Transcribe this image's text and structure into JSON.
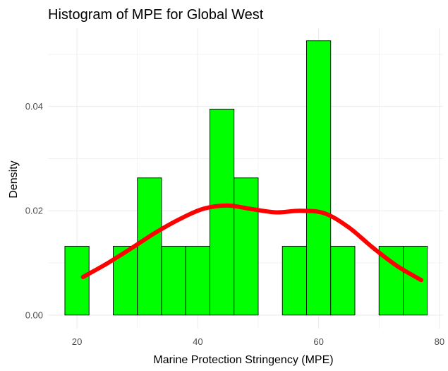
{
  "chart_data": {
    "type": "bar",
    "title": "Histogram of MPE for Global West",
    "xlabel": "Marine Protection Stringency (MPE)",
    "ylabel": "Density",
    "xlim": [
      15.2,
      80.6
    ],
    "ylim": [
      -0.0026,
      0.055
    ],
    "x_ticks": [
      20,
      40,
      60,
      80
    ],
    "y_ticks": [
      0.0,
      0.02,
      0.04
    ],
    "y_tick_labels": [
      "0.00",
      "0.02",
      "0.04"
    ],
    "grid": true,
    "bins": [
      {
        "x0": 18,
        "x1": 22,
        "density": 0.0132
      },
      {
        "x0": 22,
        "x1": 26,
        "density": 0.0
      },
      {
        "x0": 26,
        "x1": 30,
        "density": 0.0132
      },
      {
        "x0": 30,
        "x1": 34,
        "density": 0.0263
      },
      {
        "x0": 34,
        "x1": 38,
        "density": 0.0132
      },
      {
        "x0": 38,
        "x1": 42,
        "density": 0.0132
      },
      {
        "x0": 42,
        "x1": 46,
        "density": 0.0395
      },
      {
        "x0": 46,
        "x1": 50,
        "density": 0.0263
      },
      {
        "x0": 50,
        "x1": 54,
        "density": 0.0
      },
      {
        "x0": 54,
        "x1": 58,
        "density": 0.0132
      },
      {
        "x0": 58,
        "x1": 62,
        "density": 0.0526
      },
      {
        "x0": 62,
        "x1": 66,
        "density": 0.0132
      },
      {
        "x0": 66,
        "x1": 70,
        "density": 0.0
      },
      {
        "x0": 70,
        "x1": 74,
        "density": 0.0132
      },
      {
        "x0": 74,
        "x1": 78,
        "density": 0.0132
      }
    ],
    "density_curve": {
      "x": [
        21,
        25,
        29,
        33,
        37,
        41,
        45,
        49,
        53,
        57,
        61,
        65,
        69,
        73,
        77
      ],
      "y": [
        0.0073,
        0.0099,
        0.0128,
        0.0158,
        0.0184,
        0.0204,
        0.021,
        0.0203,
        0.0197,
        0.02,
        0.0195,
        0.0168,
        0.0129,
        0.0094,
        0.0067
      ]
    },
    "colors": {
      "bar_fill": "#00ff00",
      "bar_outline": "#000000",
      "curve": "#ff0000",
      "grid": "#ebebeb"
    }
  }
}
